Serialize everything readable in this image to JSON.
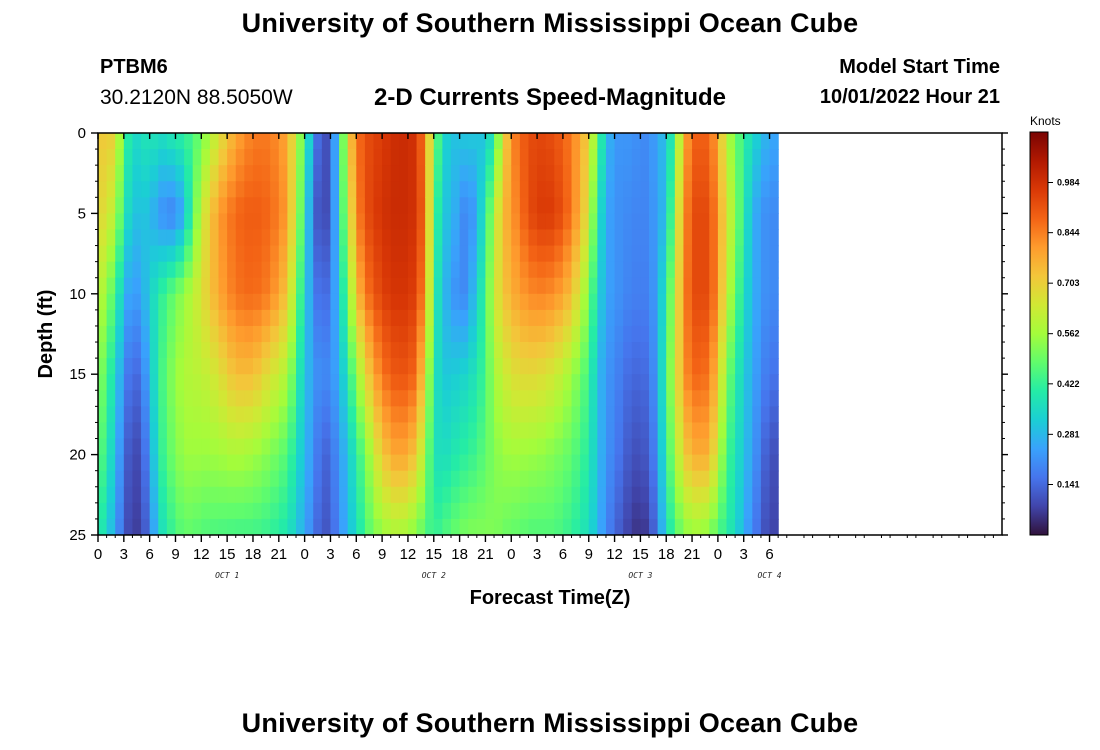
{
  "page": {
    "title": "University of Southern Mississippi Ocean Cube",
    "title_repeat": "University of Southern Mississippi Ocean Cube",
    "station_id": "PTBM6",
    "station_coords": "30.2120N  88.5050W",
    "plot_title": "2-D Currents Speed-Magnitude",
    "model_label": "Model Start Time",
    "model_time": "10/01/2022 Hour 21"
  },
  "chart_data": {
    "type": "heatmap",
    "title": "2-D Currents Speed-Magnitude",
    "xlabel": "Forecast Time(Z)",
    "ylabel": "Depth (ft)",
    "x_range_hours": [
      0,
      105
    ],
    "y_range_ft": [
      0,
      25
    ],
    "x_ticks": [
      {
        "hour": 0,
        "label": "0"
      },
      {
        "hour": 3,
        "label": "3"
      },
      {
        "hour": 6,
        "label": "6"
      },
      {
        "hour": 9,
        "label": "9"
      },
      {
        "hour": 12,
        "label": "12"
      },
      {
        "hour": 15,
        "label": "15"
      },
      {
        "hour": 18,
        "label": "18"
      },
      {
        "hour": 21,
        "label": "21"
      },
      {
        "hour": 24,
        "label": "0"
      },
      {
        "hour": 27,
        "label": "3"
      },
      {
        "hour": 30,
        "label": "6"
      },
      {
        "hour": 33,
        "label": "9"
      },
      {
        "hour": 36,
        "label": "12"
      },
      {
        "hour": 39,
        "label": "15"
      },
      {
        "hour": 42,
        "label": "18"
      },
      {
        "hour": 45,
        "label": "21"
      },
      {
        "hour": 48,
        "label": "0"
      },
      {
        "hour": 51,
        "label": "3"
      },
      {
        "hour": 54,
        "label": "6"
      },
      {
        "hour": 57,
        "label": "9"
      },
      {
        "hour": 60,
        "label": "12"
      },
      {
        "hour": 63,
        "label": "15"
      },
      {
        "hour": 66,
        "label": "18"
      },
      {
        "hour": 69,
        "label": "21"
      },
      {
        "hour": 72,
        "label": "0"
      },
      {
        "hour": 75,
        "label": "3"
      },
      {
        "hour": 78,
        "label": "6"
      }
    ],
    "date_labels": [
      {
        "hour": 15,
        "label": "OCT 1"
      },
      {
        "hour": 39,
        "label": "OCT 2"
      },
      {
        "hour": 63,
        "label": "OCT 3"
      },
      {
        "hour": 78,
        "label": "OCT 4"
      }
    ],
    "y_ticks": [
      {
        "depth": 0,
        "label": "0"
      },
      {
        "depth": 5,
        "label": "5"
      },
      {
        "depth": 10,
        "label": "10"
      },
      {
        "depth": 15,
        "label": "15"
      },
      {
        "depth": 20,
        "label": "20"
      },
      {
        "depth": 25,
        "label": "25"
      }
    ],
    "colorbar": {
      "title": "Knots",
      "min": 0.0,
      "max": 1.125,
      "labels": [
        "0.141",
        "0.281",
        "0.422",
        "0.562",
        "0.703",
        "0.844",
        "0.984"
      ],
      "stops": [
        "#30123b",
        "#4145ab",
        "#4675ed",
        "#39a2fc",
        "#1bcfd4",
        "#24eca6",
        "#61fc6c",
        "#a4fc3b",
        "#d1e834",
        "#f3c63a",
        "#fe9b2d",
        "#f36315",
        "#d93806",
        "#b11901",
        "#7a0403"
      ]
    },
    "speed_model": {
      "units": "knots",
      "hour_points": [
        0,
        2,
        3,
        4,
        5,
        6,
        7,
        9,
        10,
        11,
        12,
        14,
        16,
        18,
        20,
        22,
        24,
        25,
        26,
        27,
        28,
        29,
        30,
        31,
        33,
        35,
        37,
        38,
        39,
        40,
        41,
        42,
        43,
        44,
        45,
        46,
        47,
        48,
        49,
        50,
        51,
        53,
        55,
        57,
        58,
        59,
        60,
        61,
        62,
        63,
        64,
        65,
        66,
        67,
        68,
        69,
        70,
        71,
        72,
        73,
        74,
        75,
        76,
        77,
        78
      ],
      "depth_points_ft": [
        0,
        5,
        10,
        15,
        20,
        25
      ],
      "values": [
        [
          0.72,
          0.7,
          0.62,
          0.55,
          0.5,
          0.42
        ],
        [
          0.7,
          0.6,
          0.45,
          0.35,
          0.3,
          0.25
        ],
        [
          0.45,
          0.4,
          0.28,
          0.2,
          0.15,
          0.12
        ],
        [
          0.35,
          0.3,
          0.22,
          0.13,
          0.08,
          0.06
        ],
        [
          0.35,
          0.3,
          0.25,
          0.16,
          0.1,
          0.08
        ],
        [
          0.4,
          0.3,
          0.32,
          0.28,
          0.22,
          0.16
        ],
        [
          0.35,
          0.22,
          0.4,
          0.42,
          0.4,
          0.34
        ],
        [
          0.4,
          0.18,
          0.5,
          0.55,
          0.52,
          0.45
        ],
        [
          0.42,
          0.28,
          0.55,
          0.58,
          0.55,
          0.48
        ],
        [
          0.45,
          0.45,
          0.6,
          0.6,
          0.56,
          0.48
        ],
        [
          0.5,
          0.62,
          0.66,
          0.6,
          0.55,
          0.46
        ],
        [
          0.65,
          0.8,
          0.78,
          0.66,
          0.56,
          0.45
        ],
        [
          0.78,
          0.88,
          0.86,
          0.74,
          0.58,
          0.44
        ],
        [
          0.85,
          0.9,
          0.88,
          0.74,
          0.56,
          0.44
        ],
        [
          0.85,
          0.88,
          0.84,
          0.66,
          0.52,
          0.42
        ],
        [
          0.78,
          0.8,
          0.72,
          0.58,
          0.46,
          0.38
        ],
        [
          0.45,
          0.4,
          0.34,
          0.3,
          0.28,
          0.25
        ],
        [
          0.22,
          0.15,
          0.2,
          0.24,
          0.22,
          0.18
        ],
        [
          0.08,
          0.07,
          0.12,
          0.18,
          0.12,
          0.1
        ],
        [
          0.12,
          0.12,
          0.18,
          0.22,
          0.15,
          0.12
        ],
        [
          0.35,
          0.35,
          0.3,
          0.25,
          0.22,
          0.2
        ],
        [
          0.68,
          0.6,
          0.5,
          0.4,
          0.3,
          0.28
        ],
        [
          0.85,
          0.82,
          0.72,
          0.52,
          0.4,
          0.35
        ],
        [
          0.92,
          0.92,
          0.85,
          0.68,
          0.5,
          0.45
        ],
        [
          0.96,
          0.98,
          0.95,
          0.86,
          0.72,
          0.55
        ],
        [
          1.0,
          1.0,
          0.98,
          0.92,
          0.8,
          0.58
        ],
        [
          0.98,
          0.98,
          0.95,
          0.88,
          0.72,
          0.52
        ],
        [
          0.82,
          0.85,
          0.8,
          0.66,
          0.55,
          0.46
        ],
        [
          0.55,
          0.5,
          0.45,
          0.4,
          0.38,
          0.42
        ],
        [
          0.35,
          0.3,
          0.28,
          0.3,
          0.35,
          0.45
        ],
        [
          0.3,
          0.3,
          0.25,
          0.32,
          0.38,
          0.48
        ],
        [
          0.3,
          0.22,
          0.18,
          0.32,
          0.4,
          0.5
        ],
        [
          0.32,
          0.18,
          0.22,
          0.35,
          0.42,
          0.52
        ],
        [
          0.3,
          0.26,
          0.32,
          0.38,
          0.44,
          0.52
        ],
        [
          0.3,
          0.4,
          0.45,
          0.45,
          0.48,
          0.52
        ],
        [
          0.4,
          0.58,
          0.62,
          0.56,
          0.52,
          0.52
        ],
        [
          0.65,
          0.74,
          0.72,
          0.62,
          0.55,
          0.5
        ],
        [
          0.82,
          0.8,
          0.76,
          0.66,
          0.56,
          0.48
        ],
        [
          0.88,
          0.86,
          0.8,
          0.68,
          0.56,
          0.48
        ],
        [
          0.92,
          0.92,
          0.82,
          0.68,
          0.55,
          0.46
        ],
        [
          0.94,
          0.96,
          0.84,
          0.68,
          0.55,
          0.46
        ],
        [
          0.92,
          0.96,
          0.82,
          0.64,
          0.52,
          0.46
        ],
        [
          0.85,
          0.86,
          0.74,
          0.56,
          0.48,
          0.42
        ],
        [
          0.7,
          0.65,
          0.52,
          0.44,
          0.4,
          0.36
        ],
        [
          0.48,
          0.4,
          0.35,
          0.3,
          0.3,
          0.28
        ],
        [
          0.3,
          0.25,
          0.25,
          0.22,
          0.22,
          0.2
        ],
        [
          0.22,
          0.22,
          0.22,
          0.2,
          0.18,
          0.14
        ],
        [
          0.22,
          0.2,
          0.2,
          0.16,
          0.14,
          0.1
        ],
        [
          0.22,
          0.2,
          0.18,
          0.14,
          0.1,
          0.06
        ],
        [
          0.2,
          0.18,
          0.18,
          0.14,
          0.1,
          0.05
        ],
        [
          0.2,
          0.2,
          0.18,
          0.15,
          0.12,
          0.07
        ],
        [
          0.25,
          0.24,
          0.25,
          0.25,
          0.22,
          0.18
        ],
        [
          0.3,
          0.3,
          0.4,
          0.45,
          0.42,
          0.35
        ],
        [
          0.45,
          0.55,
          0.6,
          0.62,
          0.55,
          0.45
        ],
        [
          0.75,
          0.8,
          0.82,
          0.8,
          0.7,
          0.52
        ],
        [
          0.88,
          0.92,
          0.92,
          0.88,
          0.76,
          0.55
        ],
        [
          0.9,
          0.94,
          0.94,
          0.88,
          0.78,
          0.55
        ],
        [
          0.88,
          0.92,
          0.92,
          0.86,
          0.76,
          0.52
        ],
        [
          0.78,
          0.82,
          0.82,
          0.72,
          0.62,
          0.46
        ],
        [
          0.6,
          0.65,
          0.62,
          0.52,
          0.45,
          0.4
        ],
        [
          0.5,
          0.55,
          0.5,
          0.42,
          0.38,
          0.36
        ],
        [
          0.42,
          0.4,
          0.36,
          0.32,
          0.3,
          0.26
        ],
        [
          0.35,
          0.28,
          0.28,
          0.26,
          0.24,
          0.2
        ],
        [
          0.3,
          0.22,
          0.22,
          0.2,
          0.16,
          0.12
        ],
        [
          0.25,
          0.2,
          0.2,
          0.16,
          0.1,
          0.08
        ]
      ]
    }
  }
}
